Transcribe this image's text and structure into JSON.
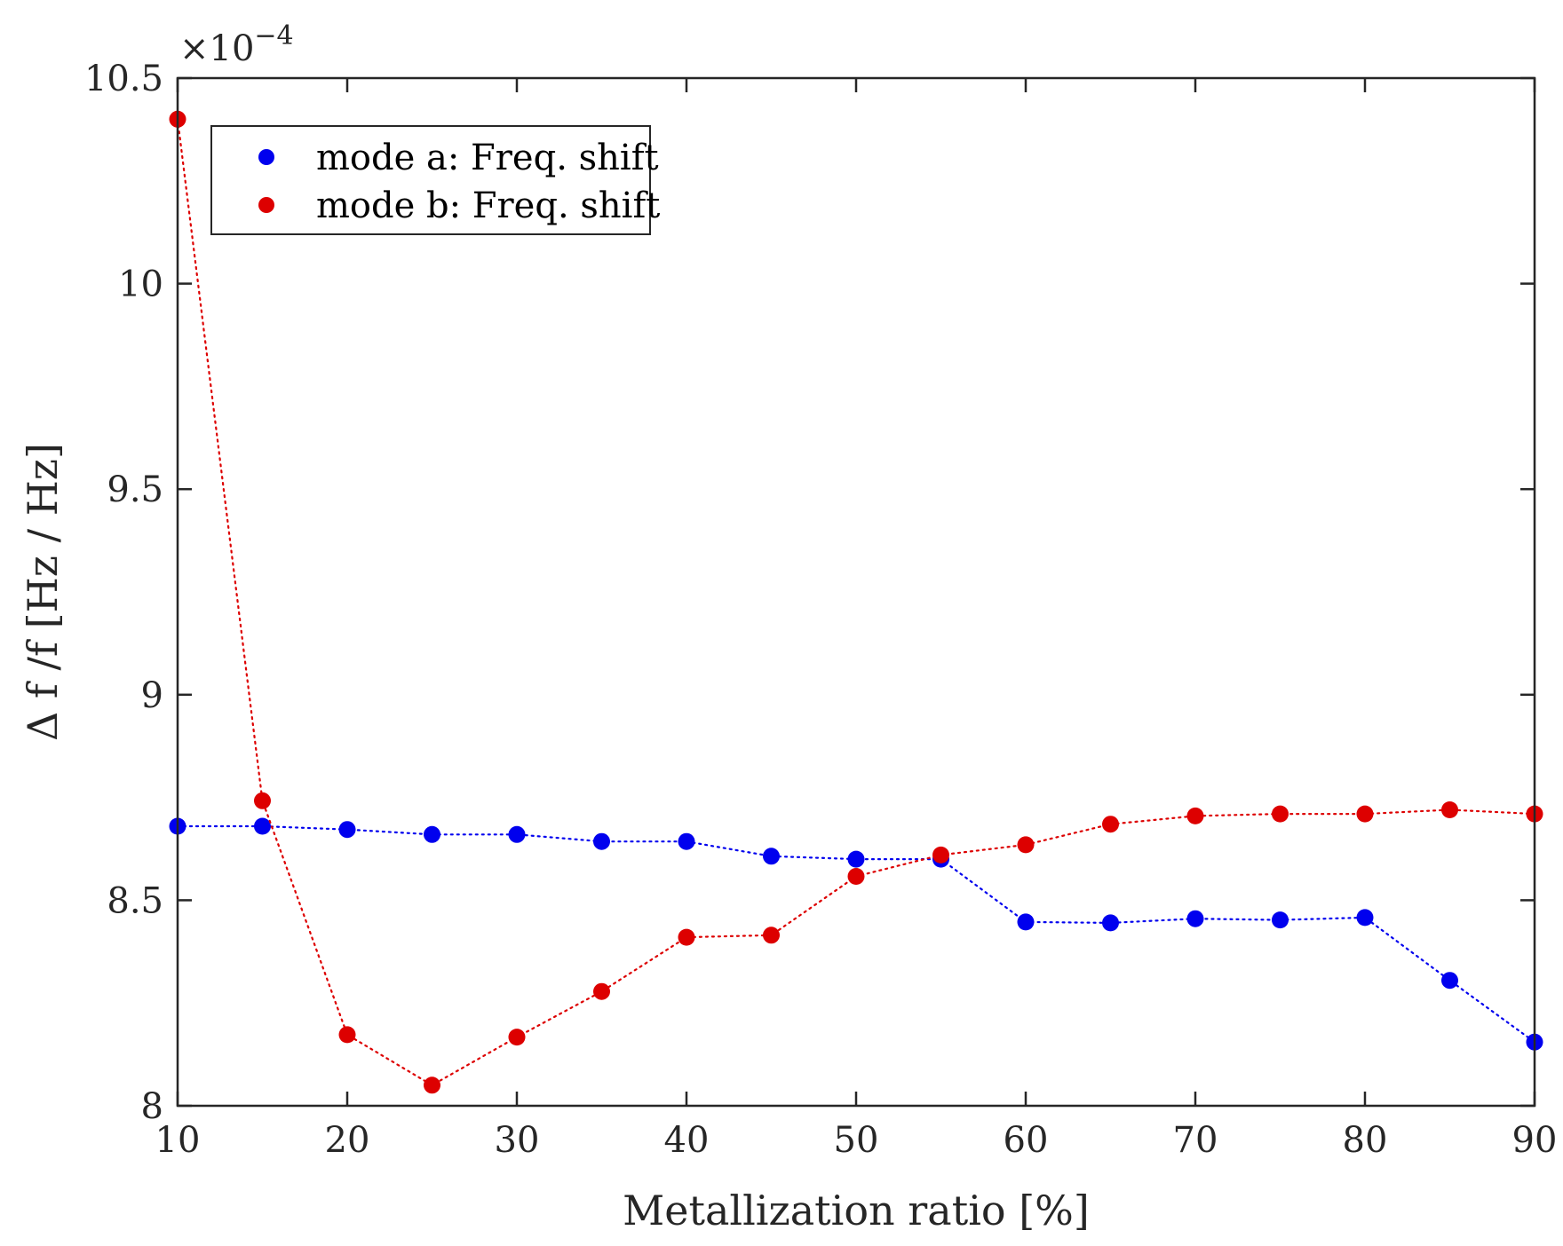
{
  "chart_data": {
    "type": "scatter",
    "title": "",
    "xlabel": "Metallization ratio [%]",
    "ylabel": "Δ f /f [Hz / Hz]",
    "y_multiplier": "×10",
    "y_multiplier_exponent": "−4",
    "xlim": [
      10,
      90
    ],
    "ylim": [
      8,
      10.5
    ],
    "xticks": [
      10,
      20,
      30,
      40,
      50,
      60,
      70,
      80,
      90
    ],
    "yticks": [
      8,
      8.5,
      9,
      9.5,
      10,
      10.5
    ],
    "xtick_labels": [
      "10",
      "20",
      "30",
      "40",
      "50",
      "60",
      "70",
      "80",
      "90"
    ],
    "ytick_labels": [
      "8",
      "8.5",
      "9",
      "9.5",
      "10",
      "10.5"
    ],
    "grid": false,
    "legend_position": "top-left",
    "x": [
      10,
      15,
      20,
      25,
      30,
      35,
      40,
      45,
      50,
      55,
      60,
      65,
      70,
      75,
      80,
      85,
      90
    ],
    "series": [
      {
        "name": "mode a: Freq. shift",
        "color": "#0000ee",
        "values": [
          8.68,
          8.68,
          8.672,
          8.66,
          8.66,
          8.643,
          8.643,
          8.607,
          8.6,
          8.6,
          8.447,
          8.445,
          8.455,
          8.452,
          8.458,
          8.305,
          8.155
        ]
      },
      {
        "name": "mode b: Freq. shift",
        "color": "#dd0000",
        "values": [
          10.4,
          8.742,
          8.173,
          8.05,
          8.167,
          8.278,
          8.41,
          8.415,
          8.558,
          8.61,
          8.635,
          8.685,
          8.705,
          8.71,
          8.71,
          8.72,
          8.71
        ]
      }
    ]
  }
}
